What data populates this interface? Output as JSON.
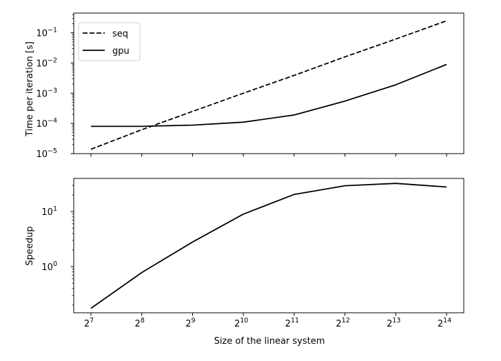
{
  "chart_data": [
    {
      "type": "line",
      "ylabel": "Time per iteration [s]",
      "yscale": "log",
      "ylim": [
        1e-05,
        0.45
      ],
      "x_exponents": [
        7,
        8,
        9,
        10,
        11,
        12,
        13,
        14
      ],
      "x_base": 2,
      "yticks": [
        {
          "base": "10",
          "exp": "−5",
          "value": 1e-05
        },
        {
          "base": "10",
          "exp": "−4",
          "value": 0.0001
        },
        {
          "base": "10",
          "exp": "−3",
          "value": 0.001
        },
        {
          "base": "10",
          "exp": "−2",
          "value": 0.01
        },
        {
          "base": "10",
          "exp": "−1",
          "value": 0.1
        }
      ],
      "legend": {
        "placement": "upper-left"
      },
      "series": [
        {
          "name": "seq",
          "style": "dashed",
          "color": "#000000",
          "values": [
            1.4e-05,
            6.2e-05,
            0.00025,
            0.001,
            0.0039,
            0.016,
            0.062,
            0.25
          ]
        },
        {
          "name": "gpu",
          "style": "solid",
          "color": "#000000",
          "values": [
            8e-05,
            8e-05,
            8.8e-05,
            0.00011,
            0.00019,
            0.00055,
            0.0019,
            0.009
          ]
        }
      ]
    },
    {
      "type": "line",
      "ylabel": "Speedup",
      "xlabel": "Size of the linear system",
      "yscale": "log",
      "ylim": [
        0.145,
        40
      ],
      "x_exponents": [
        7,
        8,
        9,
        10,
        11,
        12,
        13,
        14
      ],
      "x_base": 2,
      "yticks": [
        {
          "base": "10",
          "exp": "0",
          "value": 1
        },
        {
          "base": "10",
          "exp": "1",
          "value": 10
        }
      ],
      "series": [
        {
          "style": "solid",
          "color": "#000000",
          "values": [
            0.175,
            0.78,
            2.8,
            9.0,
            20.5,
            29.5,
            32.5,
            28.0
          ]
        }
      ]
    }
  ]
}
